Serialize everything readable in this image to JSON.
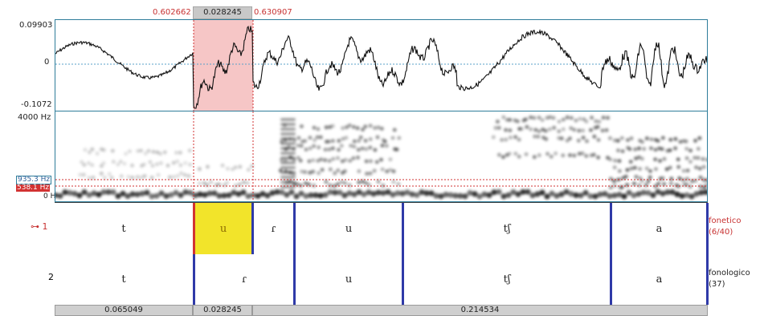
{
  "selection": {
    "start": "0.602662",
    "duration": "0.028245",
    "end": "0.630907"
  },
  "waveform": {
    "y_max": "0.09903",
    "y_zero": "0",
    "y_min": "-0.1072"
  },
  "spectrogram": {
    "freq_top": "4000 Hz",
    "freq_cursor_1": "935.3 Hz",
    "freq_cursor_2": "538.1 Hz",
    "freq_bottom": "0 Hz"
  },
  "tiers": [
    {
      "number": "1",
      "name": "fonetico",
      "count": "(6/40)",
      "intervals": [
        "t",
        "u",
        "ɾ",
        "u",
        "tʃ",
        "a"
      ]
    },
    {
      "number": "2",
      "name": "fonologico",
      "count": "(37)",
      "intervals": [
        "t",
        "ɾ",
        "u",
        "tʃ",
        "a"
      ]
    }
  ],
  "bottom_durations": [
    "0.065049",
    "0.028245",
    "0.214534"
  ],
  "colors": {
    "selection": "#f6c6c6",
    "cursor": "#d23232",
    "boundary": "#2f3aa8",
    "selected_interval": "#f2e42a",
    "panel_border": "#2e7d9a"
  }
}
